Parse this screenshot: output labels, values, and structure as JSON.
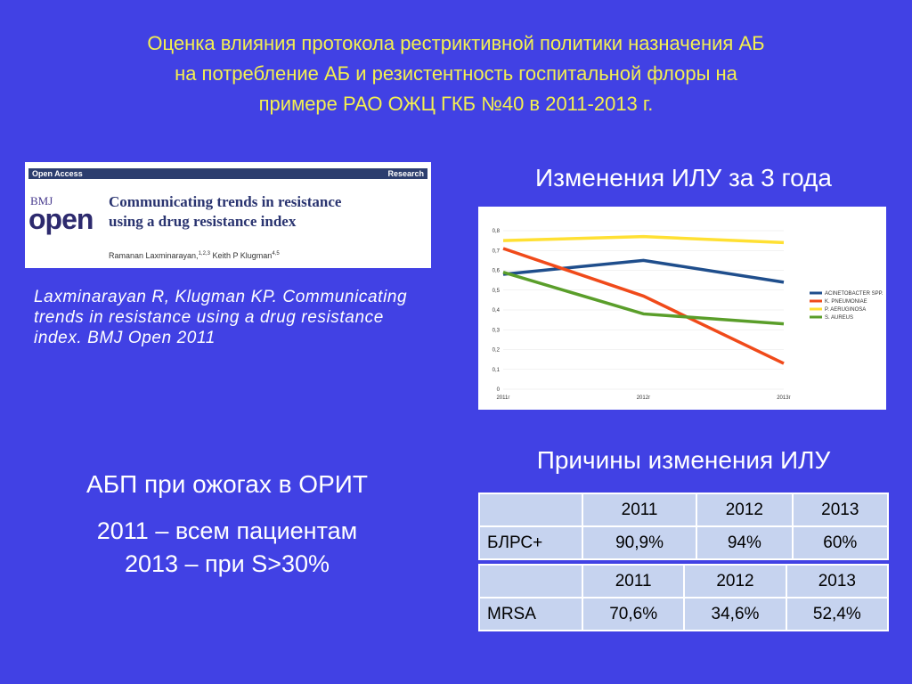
{
  "title": [
    "Оценка влияния протокола рестриктивной политики назначения АБ",
    "на потребление АБ и резистентность госпитальной флоры на",
    "примере РАО ОЖЦ ГКБ №40 в 2011-2013 г."
  ],
  "article": {
    "access": "Open Access",
    "section": "Research",
    "journal_top": "BMJ",
    "journal": "open",
    "title_lines": [
      "Communicating trends in resistance",
      "using a drug resistance index"
    ],
    "author1": "Ramanan Laxminarayan,",
    "author1_sup": "1,2,3",
    "author2": "Keith P Klugman",
    "author2_sup": "4,5"
  },
  "citation": "Laxminarayan R, Klugman KP. Communicating trends in resistance using a drug resistance index. BMJ Open 2011",
  "chart_heading": "Изменения ИЛУ за  3 года",
  "chart_data": {
    "type": "line",
    "categories": [
      "2011г",
      "2012г",
      "2013г"
    ],
    "series": [
      {
        "name": "ACINETOBACTER SPP.",
        "color": "#1f4e8c",
        "values": [
          0.58,
          0.65,
          0.54
        ]
      },
      {
        "name": "K. PNEUMONIAE",
        "color": "#f04a1a",
        "values": [
          0.71,
          0.47,
          0.13
        ]
      },
      {
        "name": "P. AERUGINOSA",
        "color": "#ffe033",
        "values": [
          0.75,
          0.77,
          0.74
        ]
      },
      {
        "name": "S. AUREUS",
        "color": "#5a9e2a",
        "values": [
          0.59,
          0.38,
          0.33
        ]
      }
    ],
    "ylim": [
      0,
      0.8
    ],
    "yticks": [
      0,
      {
        "value": 0.1,
        "label": "0,1"
      },
      {
        "value": 0.2,
        "label": "0,2"
      },
      {
        "value": 0.3,
        "label": "0,3"
      },
      {
        "value": 0.4,
        "label": "0,4"
      },
      {
        "value": 0.5,
        "label": "0,5"
      },
      {
        "value": 0.6,
        "label": "0,6"
      },
      {
        "value": 0.7,
        "label": "0,7"
      },
      {
        "value": 0.8,
        "label": "0,8"
      }
    ],
    "grid": true,
    "legend": "right"
  },
  "tables_heading": "Причины изменения ИЛУ",
  "tables": [
    {
      "columns": [
        "2011",
        "2012",
        "2013"
      ],
      "row": {
        "label": "БЛРС+",
        "values": [
          "90,9%",
          "94%",
          "60%"
        ]
      }
    },
    {
      "columns": [
        "2011",
        "2012",
        "2013"
      ],
      "row": {
        "label": "MRSA",
        "values": [
          "70,6%",
          "34,6%",
          "52,4%"
        ]
      }
    }
  ],
  "left_heading": "АБП при ожогах в ОРИТ",
  "left_lines": [
    "2011 – всем пациентам",
    "2013 – при S>30%"
  ]
}
